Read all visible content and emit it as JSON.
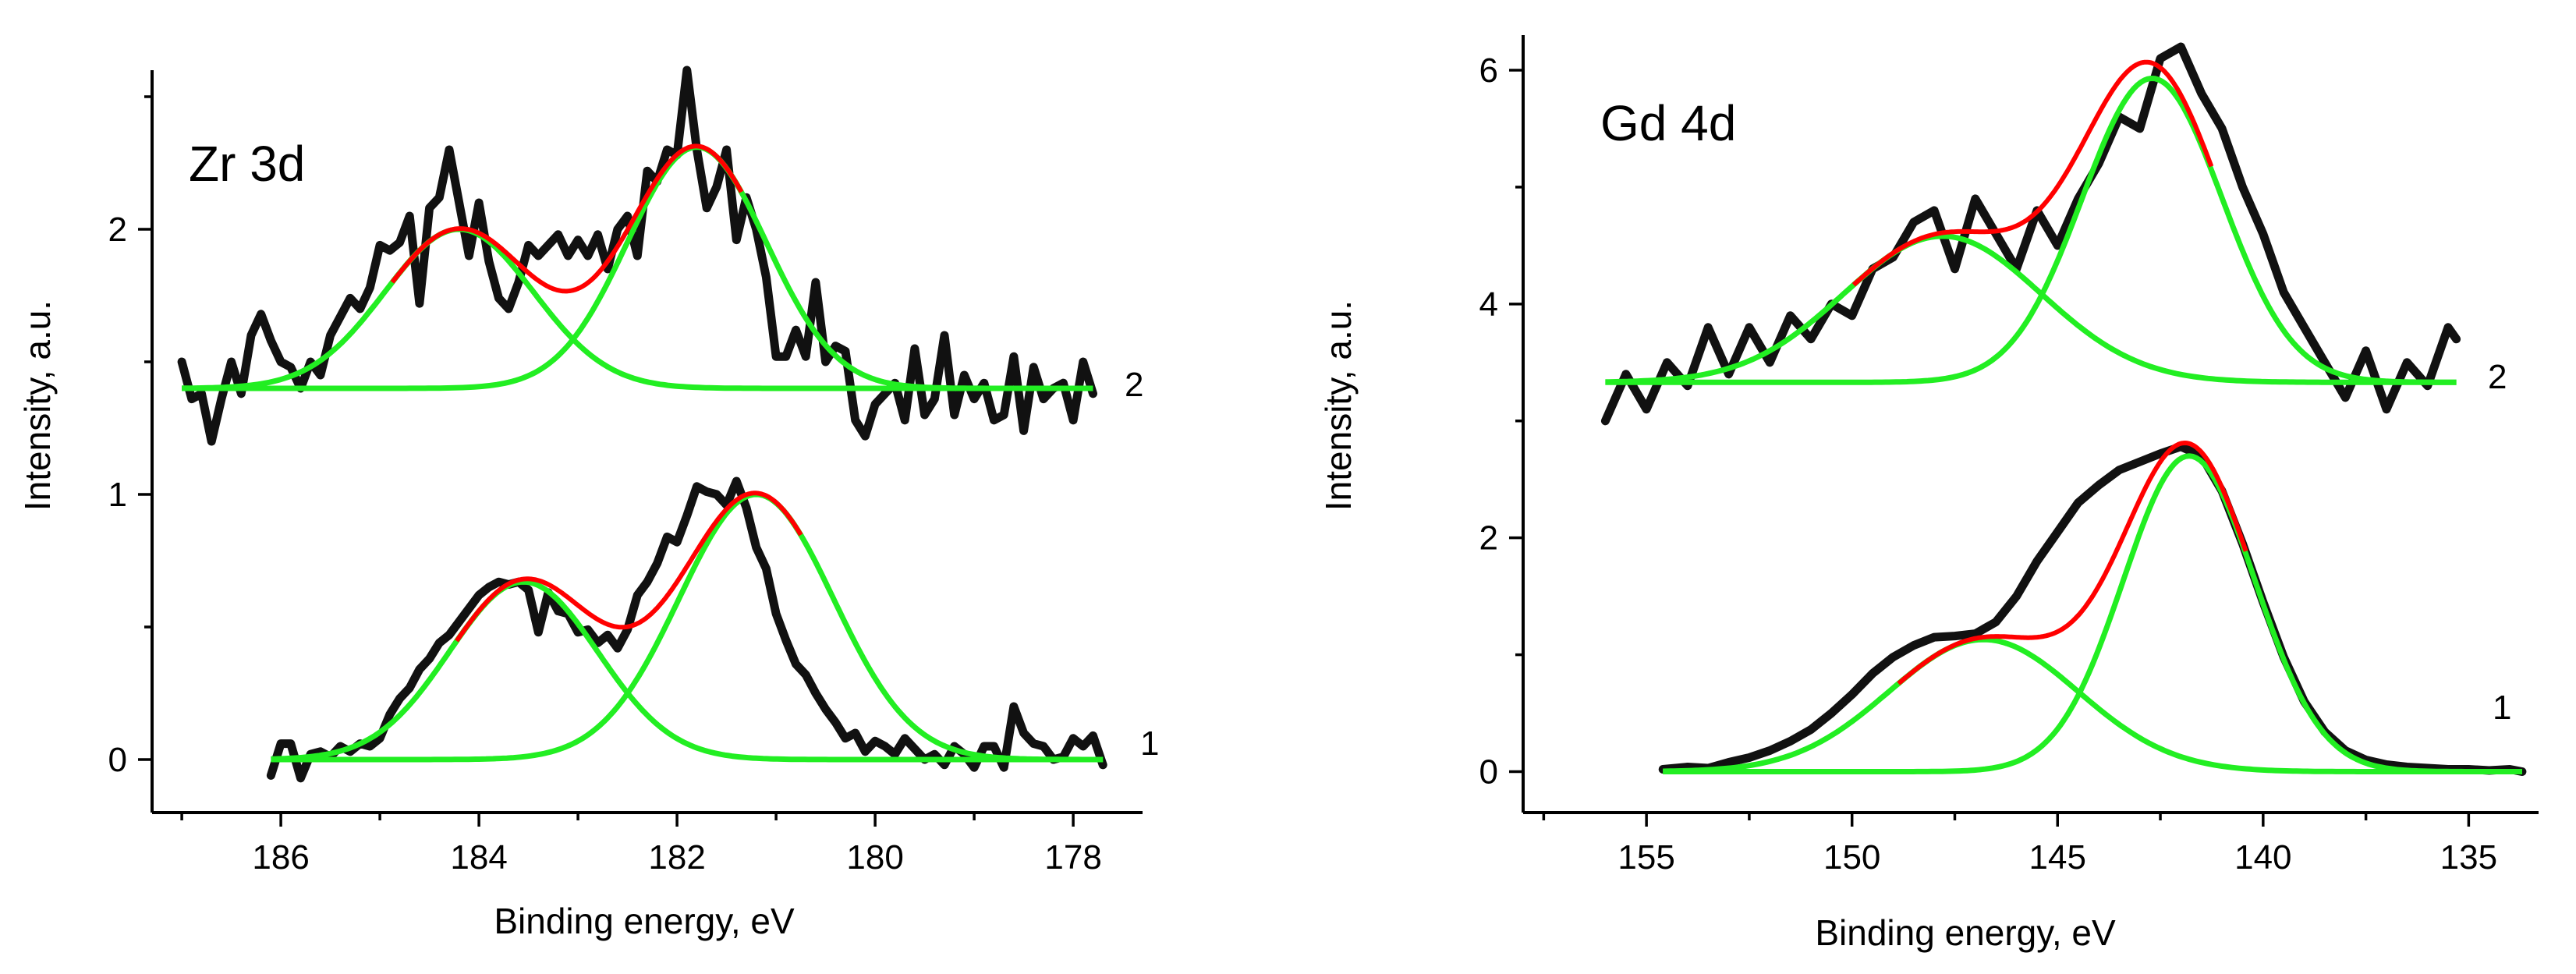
{
  "chart_data": [
    {
      "type": "line",
      "title": "Zr 3d",
      "xlabel": "Binding energy, eV",
      "ylabel": "Intensity, a.u.",
      "xlim": [
        187.3,
        177.3
      ],
      "ylim": [
        -0.2,
        2.6
      ],
      "xticks": [
        186,
        184,
        182,
        180,
        178
      ],
      "xtick_labels": [
        "186",
        "184",
        "182",
        "180",
        "178"
      ],
      "yticks": [
        0,
        1,
        2
      ],
      "ytick_labels": [
        "0",
        "1",
        "2"
      ],
      "colors": {
        "experimental": "#111111",
        "envelope": "#ff0000",
        "component": "#22ee22"
      },
      "spectra": [
        {
          "label": "1",
          "baseline": 0.0,
          "x_range": [
            186.1,
            177.7
          ],
          "experimental_x": [
            186.1,
            186.0,
            185.9,
            185.8,
            185.7,
            185.6,
            185.5,
            185.4,
            185.3,
            185.2,
            185.1,
            185.0,
            184.9,
            184.8,
            184.7,
            184.6,
            184.5,
            184.4,
            184.3,
            184.2,
            184.1,
            184.0,
            183.9,
            183.8,
            183.7,
            183.6,
            183.5,
            183.4,
            183.3,
            183.2,
            183.1,
            183.0,
            182.9,
            182.8,
            182.7,
            182.6,
            182.5,
            182.4,
            182.3,
            182.2,
            182.1,
            182.0,
            181.9,
            181.8,
            181.7,
            181.6,
            181.5,
            181.4,
            181.3,
            181.2,
            181.1,
            181.0,
            180.9,
            180.8,
            180.7,
            180.6,
            180.5,
            180.4,
            180.3,
            180.2,
            180.1,
            180.0,
            179.9,
            179.8,
            179.7,
            179.6,
            179.5,
            179.4,
            179.3,
            179.2,
            179.1,
            179.0,
            178.9,
            178.8,
            178.7,
            178.6,
            178.5,
            178.4,
            178.3,
            178.2,
            178.1,
            178.0,
            177.9,
            177.8,
            177.7
          ],
          "experimental_y": [
            -0.06,
            0.06,
            0.06,
            -0.07,
            0.02,
            0.03,
            0.01,
            0.05,
            0.03,
            0.06,
            0.05,
            0.08,
            0.17,
            0.23,
            0.27,
            0.34,
            0.38,
            0.44,
            0.47,
            0.52,
            0.57,
            0.62,
            0.65,
            0.67,
            0.66,
            0.67,
            0.64,
            0.48,
            0.63,
            0.56,
            0.55,
            0.48,
            0.49,
            0.44,
            0.47,
            0.42,
            0.49,
            0.62,
            0.67,
            0.74,
            0.84,
            0.82,
            0.92,
            1.03,
            1.01,
            1.0,
            0.96,
            1.05,
            0.95,
            0.8,
            0.72,
            0.55,
            0.45,
            0.36,
            0.32,
            0.25,
            0.19,
            0.14,
            0.08,
            0.1,
            0.03,
            0.07,
            0.05,
            0.02,
            0.08,
            0.04,
            0.0,
            0.02,
            -0.02,
            0.05,
            0.02,
            -0.03,
            0.05,
            0.05,
            -0.03,
            0.2,
            0.1,
            0.06,
            0.05,
            0.0,
            0.01,
            0.08,
            0.05,
            0.09,
            -0.02
          ],
          "components": [
            {
              "center": 183.55,
              "amplitude": 0.67,
              "sigma": 0.75
            },
            {
              "center": 181.2,
              "amplitude": 1.0,
              "sigma": 0.78
            }
          ]
        },
        {
          "label": "2",
          "baseline": 1.4,
          "x_range": [
            187.0,
            177.8
          ],
          "experimental_x": [
            187.0,
            186.9,
            186.8,
            186.7,
            186.6,
            186.5,
            186.4,
            186.3,
            186.2,
            186.1,
            186.0,
            185.9,
            185.8,
            185.7,
            185.6,
            185.5,
            185.4,
            185.3,
            185.2,
            185.1,
            185.0,
            184.9,
            184.8,
            184.7,
            184.6,
            184.5,
            184.4,
            184.3,
            184.2,
            184.1,
            184.0,
            183.9,
            183.8,
            183.7,
            183.6,
            183.5,
            183.4,
            183.3,
            183.2,
            183.1,
            183.0,
            182.9,
            182.8,
            182.7,
            182.6,
            182.5,
            182.4,
            182.3,
            182.2,
            182.1,
            182.0,
            181.9,
            181.8,
            181.7,
            181.6,
            181.5,
            181.4,
            181.3,
            181.2,
            181.1,
            181.0,
            180.9,
            180.8,
            180.7,
            180.6,
            180.5,
            180.4,
            180.3,
            180.2,
            180.1,
            180.0,
            179.9,
            179.8,
            179.7,
            179.6,
            179.5,
            179.4,
            179.3,
            179.2,
            179.1,
            179.0,
            178.9,
            178.8,
            178.7,
            178.6,
            178.5,
            178.4,
            178.3,
            178.2,
            178.1,
            178.0,
            177.9,
            177.8
          ],
          "experimental_y": [
            1.5,
            1.36,
            1.38,
            1.2,
            1.36,
            1.5,
            1.38,
            1.6,
            1.68,
            1.58,
            1.5,
            1.48,
            1.4,
            1.5,
            1.45,
            1.6,
            1.67,
            1.74,
            1.7,
            1.78,
            1.94,
            1.92,
            1.95,
            2.05,
            1.72,
            2.08,
            2.12,
            2.3,
            2.1,
            1.9,
            2.1,
            1.88,
            1.74,
            1.7,
            1.8,
            1.94,
            1.9,
            1.94,
            1.98,
            1.9,
            1.96,
            1.9,
            1.98,
            1.85,
            2.0,
            2.05,
            1.9,
            2.22,
            2.18,
            2.3,
            2.28,
            2.6,
            2.3,
            2.08,
            2.16,
            2.3,
            1.96,
            2.12,
            2.0,
            1.82,
            1.52,
            1.52,
            1.62,
            1.52,
            1.8,
            1.5,
            1.56,
            1.54,
            1.28,
            1.22,
            1.34,
            1.38,
            1.42,
            1.28,
            1.55,
            1.3,
            1.36,
            1.6,
            1.3,
            1.45,
            1.36,
            1.42,
            1.28,
            1.3,
            1.52,
            1.24,
            1.48,
            1.36,
            1.4,
            1.42,
            1.28,
            1.5,
            1.38
          ],
          "components": [
            {
              "center": 184.2,
              "amplitude": 0.6,
              "sigma": 0.75
            },
            {
              "center": 181.8,
              "amplitude": 0.91,
              "sigma": 0.7
            }
          ]
        }
      ]
    },
    {
      "type": "line",
      "title": "Gd 4d",
      "xlabel": "Binding energy, eV",
      "ylabel": "Intensity, a.u.",
      "xlim": [
        158.0,
        133.3
      ],
      "ylim": [
        -0.35,
        6.3
      ],
      "xticks": [
        155,
        150,
        145,
        140,
        135
      ],
      "xtick_labels": [
        "155",
        "150",
        "145",
        "140",
        "135"
      ],
      "yticks": [
        0,
        2,
        4,
        6
      ],
      "ytick_labels": [
        "0",
        "2",
        "4",
        "6"
      ],
      "colors": {
        "experimental": "#111111",
        "envelope": "#ff0000",
        "component": "#22ee22"
      },
      "spectra": [
        {
          "label": "1",
          "baseline": 0.0,
          "x_range": [
            154.6,
            133.7
          ],
          "experimental_x": [
            154.6,
            154.0,
            153.5,
            153.0,
            152.5,
            152.0,
            151.5,
            151.0,
            150.5,
            150.0,
            149.5,
            149.0,
            148.5,
            148.0,
            147.5,
            147.0,
            146.5,
            146.0,
            145.5,
            145.0,
            144.5,
            144.0,
            143.5,
            143.0,
            142.5,
            142.0,
            141.5,
            141.0,
            140.5,
            140.0,
            139.5,
            139.0,
            138.5,
            138.0,
            137.5,
            137.0,
            136.5,
            136.0,
            135.5,
            135.0,
            134.5,
            134.0,
            133.7
          ],
          "experimental_y": [
            0.02,
            0.04,
            0.03,
            0.08,
            0.12,
            0.18,
            0.26,
            0.36,
            0.5,
            0.66,
            0.84,
            0.98,
            1.08,
            1.15,
            1.16,
            1.18,
            1.28,
            1.5,
            1.8,
            2.05,
            2.3,
            2.45,
            2.58,
            2.65,
            2.72,
            2.78,
            2.7,
            2.4,
            1.95,
            1.45,
            0.98,
            0.6,
            0.34,
            0.18,
            0.1,
            0.06,
            0.04,
            0.03,
            0.02,
            0.02,
            0.01,
            0.02,
            0.0
          ],
          "components": [
            {
              "center": 146.8,
              "amplitude": 1.13,
              "sigma": 2.3
            },
            {
              "center": 141.8,
              "amplitude": 2.7,
              "sigma": 1.6
            }
          ]
        },
        {
          "label": "2",
          "baseline": 3.33,
          "x_range": [
            156.0,
            135.3
          ],
          "experimental_x": [
            156.0,
            155.5,
            155.0,
            154.5,
            154.0,
            153.5,
            153.0,
            152.5,
            152.0,
            151.5,
            151.0,
            150.5,
            150.0,
            149.5,
            149.0,
            148.5,
            148.0,
            147.5,
            147.0,
            146.5,
            146.0,
            145.5,
            145.0,
            144.5,
            144.0,
            143.5,
            143.0,
            142.5,
            142.0,
            141.5,
            141.0,
            140.5,
            140.0,
            139.5,
            139.0,
            138.5,
            138.0,
            137.5,
            137.0,
            136.5,
            136.0,
            135.5,
            135.3
          ],
          "experimental_y": [
            3.0,
            3.4,
            3.1,
            3.5,
            3.3,
            3.8,
            3.4,
            3.8,
            3.5,
            3.9,
            3.7,
            4.0,
            3.9,
            4.3,
            4.4,
            4.7,
            4.8,
            4.3,
            4.9,
            4.6,
            4.3,
            4.8,
            4.5,
            4.9,
            5.2,
            5.6,
            5.5,
            6.1,
            6.2,
            5.8,
            5.5,
            5.0,
            4.6,
            4.1,
            3.8,
            3.5,
            3.2,
            3.6,
            3.1,
            3.5,
            3.3,
            3.8,
            3.7
          ],
          "components": [
            {
              "center": 147.8,
              "amplitude": 1.25,
              "sigma": 2.4
            },
            {
              "center": 142.7,
              "amplitude": 2.6,
              "sigma": 1.7
            }
          ]
        }
      ]
    }
  ]
}
